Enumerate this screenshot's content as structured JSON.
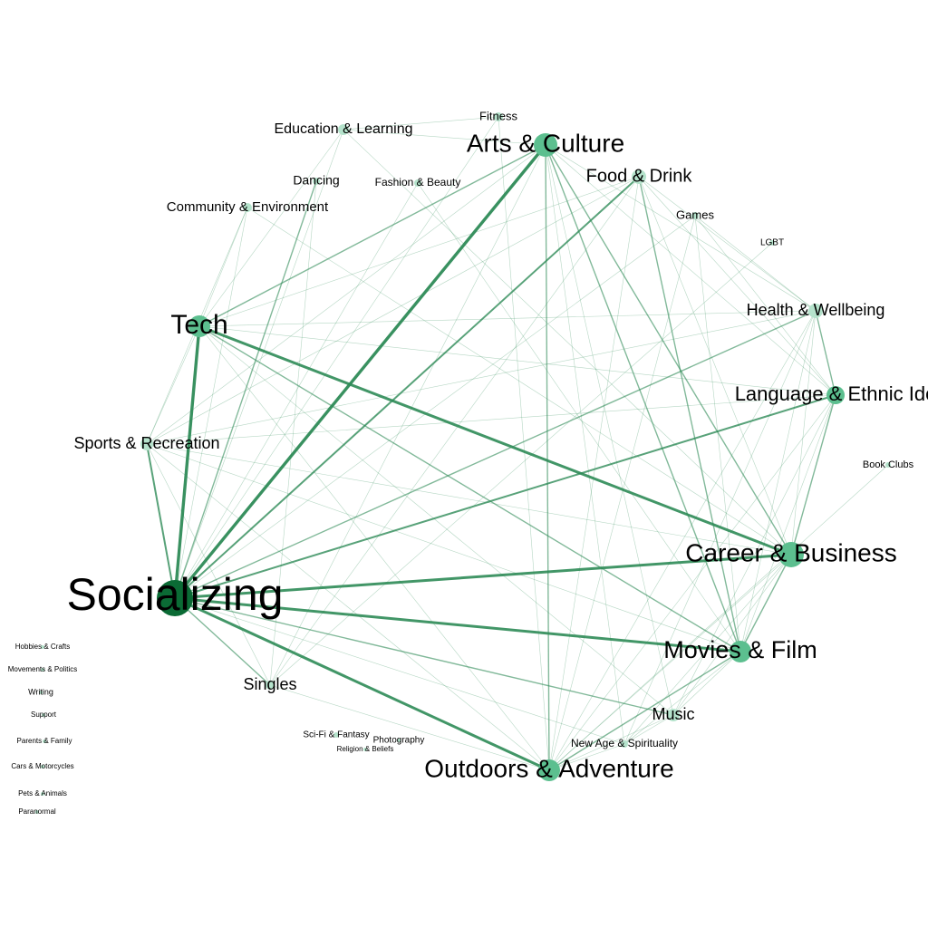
{
  "colors": {
    "background": "#ffffff",
    "edge": "#2e8b57",
    "node_dark": "#0b6b35",
    "node_mid": "#5cbf8f",
    "node_light": "#b5e3cc"
  },
  "nodes": [
    {
      "id": "socializing",
      "label": "Socializing",
      "degree": 10
    },
    {
      "id": "tech",
      "label": "Tech",
      "degree": 5
    },
    {
      "id": "arts",
      "label": "Arts & Culture",
      "degree": 5
    },
    {
      "id": "career",
      "label": "Career & Business",
      "degree": 5
    },
    {
      "id": "movies",
      "label": "Movies & Film",
      "degree": 4
    },
    {
      "id": "outdoors",
      "label": "Outdoors & Adventure",
      "degree": 4
    },
    {
      "id": "language",
      "label": "Language & Ethnic Ide",
      "degree": 3
    },
    {
      "id": "health",
      "label": "Health & Wellbeing",
      "degree": 2
    },
    {
      "id": "food",
      "label": "Food & Drink",
      "degree": 2
    },
    {
      "id": "sports",
      "label": "Sports & Recreation",
      "degree": 2
    },
    {
      "id": "music",
      "label": "Music",
      "degree": 2
    },
    {
      "id": "singles",
      "label": "Singles",
      "degree": 2
    },
    {
      "id": "education",
      "label": "Education & Learning",
      "degree": 1
    },
    {
      "id": "community",
      "label": "Community & Environment",
      "degree": 1
    },
    {
      "id": "fitness",
      "label": "Fitness",
      "degree": 1
    },
    {
      "id": "dancing",
      "label": "Dancing",
      "degree": 1
    },
    {
      "id": "fashion",
      "label": "Fashion & Beauty",
      "degree": 1
    },
    {
      "id": "games",
      "label": "Games",
      "degree": 1
    },
    {
      "id": "lgbt",
      "label": "LGBT",
      "degree": 0
    },
    {
      "id": "bookclubs",
      "label": "Book Clubs",
      "degree": 0
    },
    {
      "id": "newage",
      "label": "New Age & Spirituality",
      "degree": 1
    },
    {
      "id": "scifi",
      "label": "Sci-Fi & Fantasy",
      "degree": 1
    },
    {
      "id": "photography",
      "label": "Photography",
      "degree": 1
    },
    {
      "id": "religion",
      "label": "Religion & Beliefs",
      "degree": 0
    },
    {
      "id": "hobbies",
      "label": "Hobbies & Crafts",
      "degree": 0
    },
    {
      "id": "movements",
      "label": "Movements & Politics",
      "degree": 0
    },
    {
      "id": "writing",
      "label": "Writing",
      "degree": 0
    },
    {
      "id": "support",
      "label": "Support",
      "degree": 0
    },
    {
      "id": "parents",
      "label": "Parents & Family",
      "degree": 0
    },
    {
      "id": "cars",
      "label": "Cars & Motorcycles",
      "degree": 0
    },
    {
      "id": "pets",
      "label": "Pets & Animals",
      "degree": 0
    },
    {
      "id": "paranormal",
      "label": "Paranormal",
      "degree": 0
    }
  ],
  "edges": [
    {
      "source": "socializing",
      "target": "arts",
      "weight": 5
    },
    {
      "source": "socializing",
      "target": "tech",
      "weight": 5
    },
    {
      "source": "socializing",
      "target": "career",
      "weight": 4
    },
    {
      "source": "socializing",
      "target": "movies",
      "weight": 4
    },
    {
      "source": "socializing",
      "target": "outdoors",
      "weight": 4
    },
    {
      "source": "socializing",
      "target": "food",
      "weight": 3
    },
    {
      "source": "socializing",
      "target": "language",
      "weight": 3
    },
    {
      "source": "socializing",
      "target": "sports",
      "weight": 3
    },
    {
      "source": "socializing",
      "target": "health",
      "weight": 2
    },
    {
      "source": "socializing",
      "target": "music",
      "weight": 2
    },
    {
      "source": "socializing",
      "target": "singles",
      "weight": 2
    },
    {
      "source": "socializing",
      "target": "dancing",
      "weight": 2
    },
    {
      "source": "socializing",
      "target": "fashion",
      "weight": 1
    },
    {
      "source": "socializing",
      "target": "community",
      "weight": 1
    },
    {
      "source": "socializing",
      "target": "education",
      "weight": 1
    },
    {
      "source": "socializing",
      "target": "fitness",
      "weight": 1
    },
    {
      "source": "socializing",
      "target": "games",
      "weight": 1
    },
    {
      "source": "socializing",
      "target": "newage",
      "weight": 1
    },
    {
      "source": "tech",
      "target": "career",
      "weight": 4
    },
    {
      "source": "tech",
      "target": "arts",
      "weight": 2
    },
    {
      "source": "tech",
      "target": "language",
      "weight": 1
    },
    {
      "source": "tech",
      "target": "movies",
      "weight": 2
    },
    {
      "source": "tech",
      "target": "outdoors",
      "weight": 1
    },
    {
      "source": "tech",
      "target": "sports",
      "weight": 1
    },
    {
      "source": "tech",
      "target": "education",
      "weight": 1
    },
    {
      "source": "tech",
      "target": "community",
      "weight": 1
    },
    {
      "source": "tech",
      "target": "food",
      "weight": 1
    },
    {
      "source": "tech",
      "target": "health",
      "weight": 1
    },
    {
      "source": "tech",
      "target": "music",
      "weight": 1
    },
    {
      "source": "arts",
      "target": "career",
      "weight": 2
    },
    {
      "source": "arts",
      "target": "movies",
      "weight": 2
    },
    {
      "source": "arts",
      "target": "outdoors",
      "weight": 2
    },
    {
      "source": "arts",
      "target": "language",
      "weight": 1
    },
    {
      "source": "arts",
      "target": "music",
      "weight": 1
    },
    {
      "source": "arts",
      "target": "health",
      "weight": 1
    },
    {
      "source": "arts",
      "target": "education",
      "weight": 1
    },
    {
      "source": "arts",
      "target": "sports",
      "weight": 1
    },
    {
      "source": "arts",
      "target": "singles",
      "weight": 1
    },
    {
      "source": "arts",
      "target": "newage",
      "weight": 1
    },
    {
      "source": "food",
      "target": "career",
      "weight": 1
    },
    {
      "source": "food",
      "target": "movies",
      "weight": 2
    },
    {
      "source": "food",
      "target": "outdoors",
      "weight": 1
    },
    {
      "source": "food",
      "target": "language",
      "weight": 1
    },
    {
      "source": "food",
      "target": "health",
      "weight": 1
    },
    {
      "source": "food",
      "target": "sports",
      "weight": 1
    },
    {
      "source": "food",
      "target": "singles",
      "weight": 1
    },
    {
      "source": "career",
      "target": "outdoors",
      "weight": 1
    },
    {
      "source": "career",
      "target": "movies",
      "weight": 2
    },
    {
      "source": "career",
      "target": "language",
      "weight": 2
    },
    {
      "source": "career",
      "target": "health",
      "weight": 1
    },
    {
      "source": "career",
      "target": "sports",
      "weight": 1
    },
    {
      "source": "career",
      "target": "music",
      "weight": 1
    },
    {
      "source": "career",
      "target": "newage",
      "weight": 1
    },
    {
      "source": "movies",
      "target": "outdoors",
      "weight": 2
    },
    {
      "source": "movies",
      "target": "language",
      "weight": 1
    },
    {
      "source": "movies",
      "target": "health",
      "weight": 1
    },
    {
      "source": "movies",
      "target": "music",
      "weight": 1
    },
    {
      "source": "movies",
      "target": "newage",
      "weight": 1
    },
    {
      "source": "movies",
      "target": "sports",
      "weight": 1
    },
    {
      "source": "outdoors",
      "target": "language",
      "weight": 1
    },
    {
      "source": "outdoors",
      "target": "health",
      "weight": 1
    },
    {
      "source": "outdoors",
      "target": "sports",
      "weight": 1
    },
    {
      "source": "outdoors",
      "target": "singles",
      "weight": 1
    },
    {
      "source": "outdoors",
      "target": "music",
      "weight": 1
    },
    {
      "source": "outdoors",
      "target": "newage",
      "weight": 1
    },
    {
      "source": "language",
      "target": "health",
      "weight": 2
    },
    {
      "source": "language",
      "target": "sports",
      "weight": 1
    },
    {
      "source": "language",
      "target": "games",
      "weight": 1
    },
    {
      "source": "language",
      "target": "music",
      "weight": 1
    },
    {
      "source": "health",
      "target": "sports",
      "weight": 1
    },
    {
      "source": "health",
      "target": "games",
      "weight": 1
    },
    {
      "source": "health",
      "target": "newage",
      "weight": 1
    },
    {
      "source": "sports",
      "target": "singles",
      "weight": 1
    },
    {
      "source": "sports",
      "target": "community",
      "weight": 1
    },
    {
      "source": "education",
      "target": "career",
      "weight": 1
    },
    {
      "source": "education",
      "target": "fitness",
      "weight": 1
    },
    {
      "source": "community",
      "target": "career",
      "weight": 1
    },
    {
      "source": "dancing",
      "target": "singles",
      "weight": 1
    },
    {
      "source": "fitness",
      "target": "outdoors",
      "weight": 1
    },
    {
      "source": "fashion",
      "target": "movies",
      "weight": 1
    },
    {
      "source": "games",
      "target": "movies",
      "weight": 1
    },
    {
      "source": "games",
      "target": "outdoors",
      "weight": 1
    },
    {
      "source": "lgbt",
      "target": "singles",
      "weight": 1
    },
    {
      "source": "bookclubs",
      "target": "outdoors",
      "weight": 1
    },
    {
      "source": "music",
      "target": "newage",
      "weight": 1
    }
  ]
}
